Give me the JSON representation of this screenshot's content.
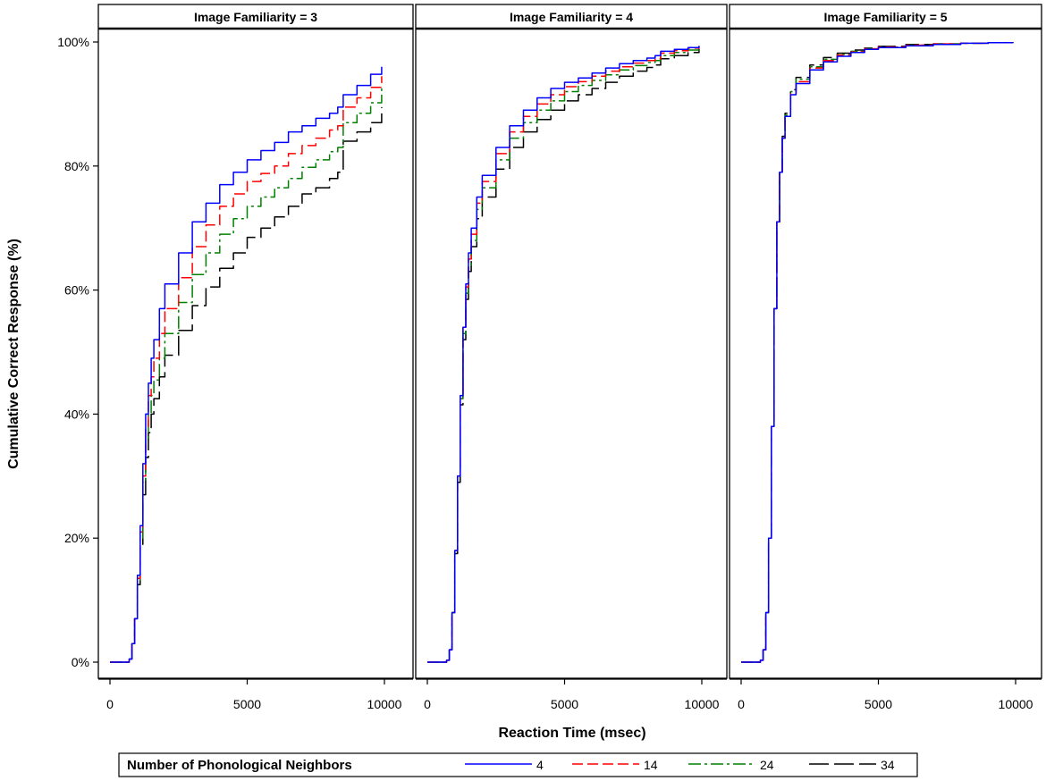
{
  "chart_data": {
    "type": "line",
    "ylabel": "Cumulative Correct Response (%)",
    "xlabel": "Reaction Time (msec)",
    "xlim": [
      0,
      10000
    ],
    "ylim": [
      0,
      100
    ],
    "x_ticks": [
      "0",
      "5000",
      "10000"
    ],
    "y_ticks": [
      "0%",
      "20%",
      "40%",
      "60%",
      "80%",
      "100%"
    ],
    "grid": false,
    "legend": {
      "title": "Number of Phonological Neighbors",
      "placement": "bottom",
      "entries": [
        {
          "label": "4",
          "color": "#0000ff",
          "dash": "solid"
        },
        {
          "label": "14",
          "color": "#ff0000",
          "dash": "dashed"
        },
        {
          "label": "24",
          "color": "#008000",
          "dash": "dashdot"
        },
        {
          "label": "34",
          "color": "#000000",
          "dash": "longdash"
        }
      ]
    },
    "panels": [
      {
        "strip": "Image Familiarity = 3",
        "series": [
          {
            "name": "4",
            "x": [
              0,
              500,
              700,
              800,
              900,
              1000,
              1100,
              1200,
              1300,
              1400,
              1500,
              1600,
              1800,
              2000,
              2500,
              3000,
              3500,
              4000,
              4500,
              5000,
              5500,
              6000,
              6500,
              7000,
              7500,
              8000,
              8300,
              8500,
              9000,
              9500,
              9900
            ],
            "y": [
              0,
              0,
              0.5,
              3,
              7,
              14,
              22,
              32,
              40,
              45,
              49,
              52,
              57,
              61,
              66,
              71,
              74,
              77,
              79,
              81,
              82.5,
              83.8,
              85.5,
              86.5,
              87.7,
              88.5,
              89.5,
              91.5,
              93,
              94.8,
              96
            ]
          },
          {
            "name": "14",
            "x": [
              0,
              500,
              700,
              800,
              900,
              1000,
              1100,
              1200,
              1300,
              1400,
              1500,
              1600,
              1800,
              2000,
              2500,
              3000,
              3500,
              4000,
              4500,
              5000,
              5500,
              6000,
              6500,
              7000,
              7500,
              8000,
              8300,
              8500,
              9000,
              9500,
              9900
            ],
            "y": [
              0,
              0,
              0.5,
              3,
              7,
              13.5,
              21,
              30,
              38,
              43,
              46,
              49,
              53,
              57,
              62,
              67,
              70.5,
              73.5,
              75.5,
              77.5,
              78.8,
              80,
              82,
              83.3,
              84.5,
              85.8,
              86.5,
              89.5,
              91,
              92.7,
              94.5
            ]
          },
          {
            "name": "24",
            "x": [
              0,
              500,
              700,
              800,
              900,
              1000,
              1100,
              1200,
              1300,
              1400,
              1500,
              1600,
              1800,
              2000,
              2500,
              3000,
              3500,
              4000,
              4500,
              5000,
              5500,
              6000,
              6500,
              7000,
              7500,
              8000,
              8300,
              8500,
              9000,
              9500,
              9900
            ],
            "y": [
              0,
              0,
              0.5,
              3,
              7,
              13,
              20,
              29,
              36,
              40,
              43,
              45.5,
              49,
              53,
              58,
              62.5,
              66,
              69,
              71.5,
              73.5,
              75,
              76.5,
              78,
              79.8,
              81,
              82.3,
              83,
              87,
              88.5,
              90.2,
              92.5
            ]
          },
          {
            "name": "34",
            "x": [
              0,
              500,
              700,
              800,
              900,
              1000,
              1100,
              1200,
              1300,
              1400,
              1500,
              1600,
              1800,
              2000,
              2500,
              3000,
              3500,
              4000,
              4500,
              5000,
              5500,
              6000,
              6500,
              7000,
              7500,
              8000,
              8300,
              8500,
              9000,
              9500,
              9900
            ],
            "y": [
              0,
              0,
              0.5,
              3,
              7,
              12.5,
              19,
              27,
              33,
              37,
              40,
              42.5,
              46,
              49.5,
              53.5,
              57.5,
              60.5,
              63.5,
              66,
              68.5,
              70,
              71.8,
              73.5,
              75.5,
              76.5,
              78,
              79,
              84,
              85.5,
              87,
              89.5
            ]
          }
        ]
      },
      {
        "strip": "Image Familiarity = 4",
        "series": [
          {
            "name": "4",
            "x": [
              0,
              500,
              700,
              800,
              900,
              1000,
              1100,
              1200,
              1300,
              1400,
              1500,
              1600,
              1800,
              2000,
              2500,
              3000,
              3500,
              4000,
              4500,
              5000,
              5500,
              6000,
              6500,
              7000,
              7500,
              8000,
              8300,
              8500,
              9000,
              9500,
              9900
            ],
            "y": [
              0,
              0,
              0.3,
              2,
              8,
              18,
              30,
              43,
              54,
              61,
              66,
              70,
              75,
              78.5,
              83,
              86.5,
              89,
              91,
              92.5,
              93.5,
              94.2,
              95,
              95.8,
              96.5,
              97,
              97.4,
              97.8,
              98.5,
              98.8,
              99.1,
              99.4
            ]
          },
          {
            "name": "14",
            "x": [
              0,
              500,
              700,
              800,
              900,
              1000,
              1100,
              1200,
              1300,
              1400,
              1500,
              1600,
              1800,
              2000,
              2500,
              3000,
              3500,
              4000,
              4500,
              5000,
              5500,
              6000,
              6500,
              7000,
              7500,
              8000,
              8300,
              8500,
              9000,
              9500,
              9900
            ],
            "y": [
              0,
              0,
              0.3,
              2,
              8,
              18,
              30,
              43,
              54,
              60.5,
              65,
              69,
              74,
              77.5,
              82,
              85.5,
              88,
              90,
              91.5,
              92.8,
              93.6,
              94.5,
              95.3,
              96,
              96.6,
              97,
              97.3,
              98.2,
              98.6,
              99,
              99.3
            ]
          },
          {
            "name": "24",
            "x": [
              0,
              500,
              700,
              800,
              900,
              1000,
              1100,
              1200,
              1300,
              1400,
              1500,
              1600,
              1800,
              2000,
              2500,
              3000,
              3500,
              4000,
              4500,
              5000,
              5500,
              6000,
              6500,
              7000,
              7500,
              8000,
              8300,
              8500,
              9000,
              9500,
              9900
            ],
            "y": [
              0,
              0,
              0.3,
              2,
              8,
              18,
              30,
              42.5,
              53,
              59.5,
              64,
              68,
              73,
              76.5,
              81,
              84.5,
              87,
              89,
              90.5,
              92,
              93,
              93.8,
              94.7,
              95.5,
              96.2,
              96.7,
              97,
              97.8,
              98.3,
              98.7,
              99.1
            ]
          },
          {
            "name": "34",
            "x": [
              0,
              500,
              700,
              800,
              900,
              1000,
              1100,
              1200,
              1300,
              1400,
              1500,
              1600,
              1800,
              2000,
              2500,
              3000,
              3500,
              4000,
              4500,
              5000,
              5500,
              6000,
              6500,
              7000,
              7500,
              8000,
              8300,
              8500,
              9000,
              9500,
              9900
            ],
            "y": [
              0,
              0,
              0.3,
              2,
              8,
              17.5,
              29,
              41.5,
              52,
              58.5,
              63,
              67,
              71.5,
              75,
              79.5,
              83,
              85.5,
              87.5,
              89,
              90.5,
              91.5,
              92.5,
              93.5,
              94.5,
              95.3,
              95.9,
              96.3,
              97.3,
              97.8,
              98.3,
              98.9
            ]
          }
        ]
      },
      {
        "strip": "Image Familiarity = 5",
        "series": [
          {
            "name": "4",
            "x": [
              0,
              500,
              700,
              800,
              900,
              1000,
              1100,
              1200,
              1300,
              1400,
              1500,
              1600,
              1800,
              2000,
              2500,
              3000,
              3500,
              4000,
              4500,
              5000,
              6000,
              7000,
              8000,
              9000,
              9900
            ],
            "y": [
              0,
              0,
              0.3,
              2,
              8,
              20,
              38,
              57,
              71,
              79,
              84.5,
              88,
              91.5,
              93.3,
              95.5,
              96.8,
              97.7,
              98.3,
              98.8,
              99.1,
              99.4,
              99.6,
              99.8,
              99.9,
              100
            ]
          },
          {
            "name": "14",
            "x": [
              0,
              500,
              700,
              800,
              900,
              1000,
              1100,
              1200,
              1300,
              1400,
              1500,
              1600,
              1800,
              2000,
              2500,
              3000,
              3500,
              4000,
              4500,
              5000,
              6000,
              7000,
              8000,
              9000,
              9900
            ],
            "y": [
              0,
              0,
              0.3,
              2,
              8,
              20,
              38,
              57,
              71,
              79,
              84.5,
              88,
              91.7,
              93.6,
              95.8,
              97,
              97.9,
              98.4,
              98.9,
              99.2,
              99.5,
              99.7,
              99.8,
              99.9,
              100
            ]
          },
          {
            "name": "24",
            "x": [
              0,
              500,
              700,
              800,
              900,
              1000,
              1100,
              1200,
              1300,
              1400,
              1500,
              1600,
              1800,
              2000,
              2500,
              3000,
              3500,
              4000,
              4500,
              5000,
              6000,
              7000,
              8000,
              9000,
              9900
            ],
            "y": [
              0,
              0,
              0.3,
              2,
              8,
              20,
              38,
              57,
              71,
              79,
              84.5,
              88.2,
              92,
              94,
              96,
              97.2,
              98,
              98.5,
              98.9,
              99.2,
              99.5,
              99.7,
              99.8,
              99.9,
              100
            ]
          },
          {
            "name": "34",
            "x": [
              0,
              500,
              700,
              800,
              900,
              1000,
              1100,
              1200,
              1300,
              1400,
              1500,
              1600,
              1800,
              2000,
              2500,
              3000,
              3500,
              4000,
              4500,
              5000,
              6000,
              7000,
              8000,
              9000,
              9900
            ],
            "y": [
              0,
              0,
              0.3,
              2,
              8,
              20,
              38,
              57,
              71,
              79,
              84.8,
              88.5,
              92.3,
              94.3,
              96.3,
              97.5,
              98.2,
              98.7,
              99,
              99.3,
              99.6,
              99.7,
              99.8,
              99.9,
              100
            ]
          }
        ]
      }
    ]
  }
}
